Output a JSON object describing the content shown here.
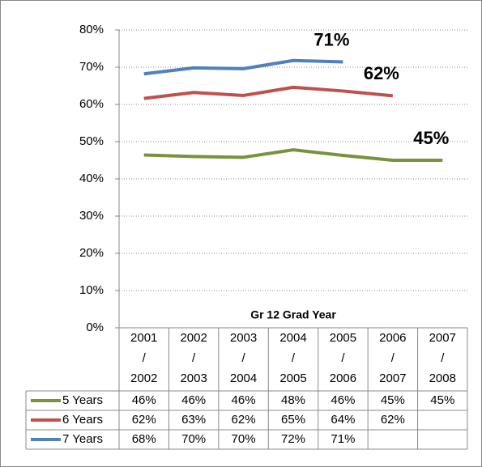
{
  "chart_data": {
    "type": "line",
    "x_label": "Gr 12 Grad Year",
    "categories": [
      "2001 / 2002",
      "2002 / 2003",
      "2003 / 2004",
      "2004 / 2005",
      "2005 / 2006",
      "2006 / 2007",
      "2007 / 2008"
    ],
    "ylim": [
      0,
      80
    ],
    "yticks": [
      {
        "value": 0,
        "label": "0%"
      },
      {
        "value": 10,
        "label": "10%"
      },
      {
        "value": 20,
        "label": "20%"
      },
      {
        "value": 30,
        "label": "30%"
      },
      {
        "value": 40,
        "label": "40%"
      },
      {
        "value": 50,
        "label": "50%"
      },
      {
        "value": 60,
        "label": "60%"
      },
      {
        "value": 70,
        "label": "70%"
      },
      {
        "value": 80,
        "label": "80%"
      }
    ],
    "grid": true,
    "series": [
      {
        "name": "5 Years",
        "color": "#77933c",
        "end_label": "45%",
        "values": [
          46.4,
          46.0,
          45.8,
          47.8,
          46.3,
          45.0,
          45.0
        ],
        "value_labels": [
          "46%",
          "46%",
          "46%",
          "48%",
          "46%",
          "45%",
          "45%"
        ]
      },
      {
        "name": "6 Years",
        "color": "#c0504d",
        "end_label": "62%",
        "values": [
          61.6,
          63.2,
          62.4,
          64.6,
          63.6,
          62.3,
          null
        ],
        "value_labels": [
          "62%",
          "63%",
          "62%",
          "65%",
          "64%",
          "62%",
          null
        ]
      },
      {
        "name": "7 Years",
        "color": "#4f81bd",
        "end_label": "71%",
        "values": [
          68.2,
          69.8,
          69.6,
          71.8,
          71.4,
          null,
          null
        ],
        "value_labels": [
          "68%",
          "70%",
          "70%",
          "72%",
          "71%",
          null,
          null
        ]
      }
    ]
  }
}
